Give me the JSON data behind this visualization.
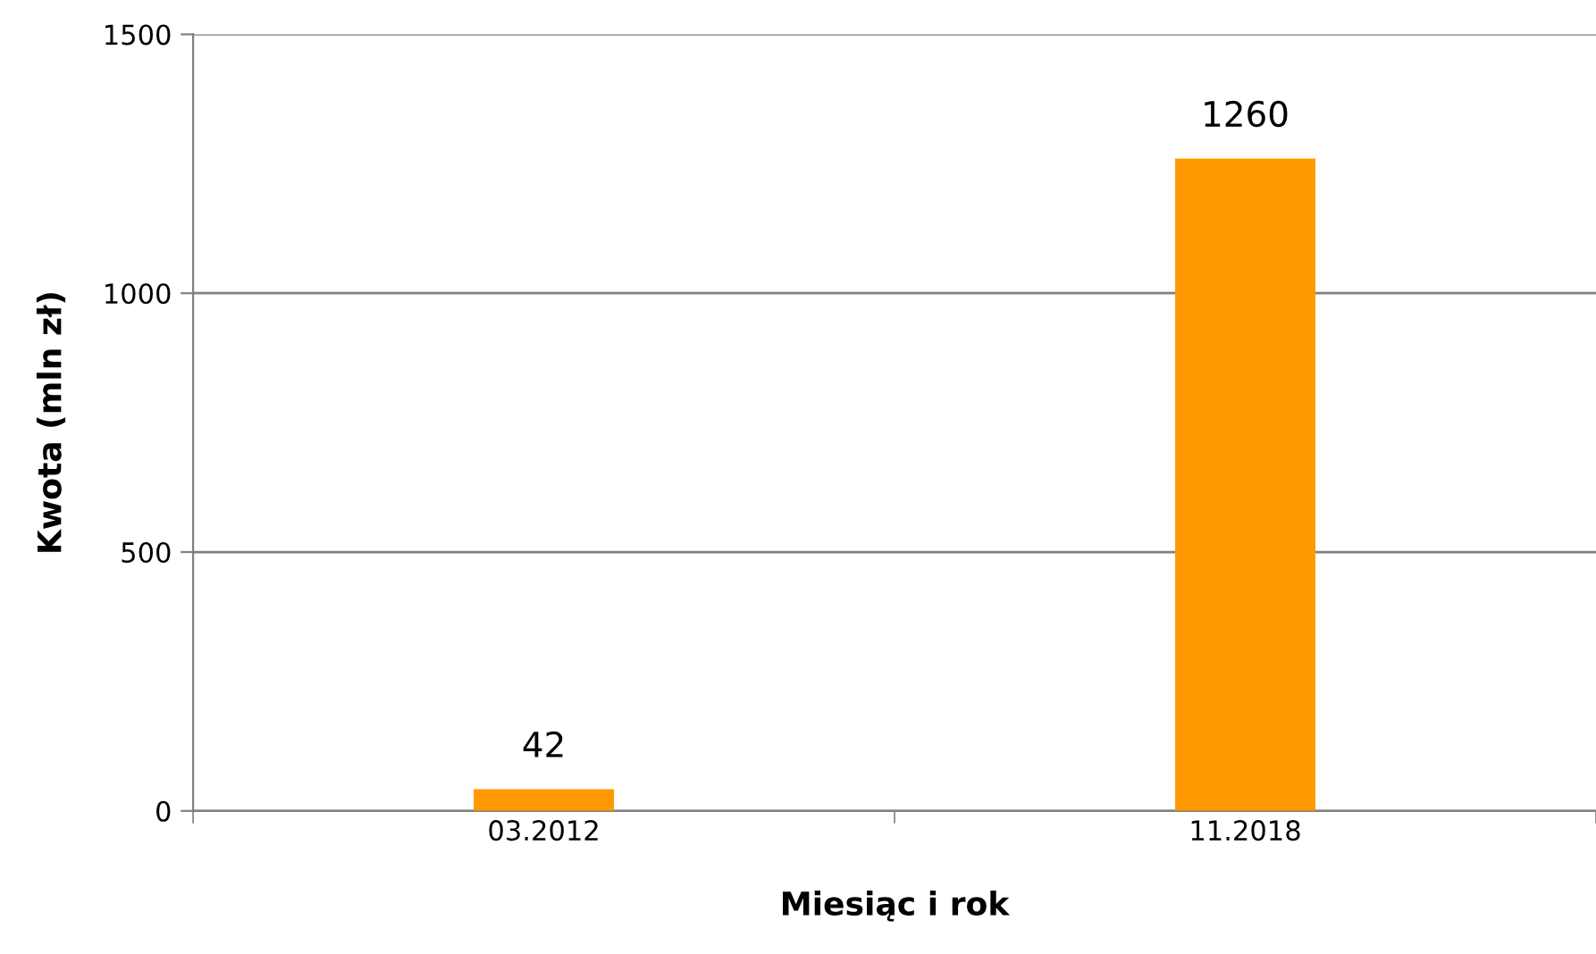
{
  "chart_data": {
    "type": "bar",
    "xlabel": "Miesiąc i rok",
    "ylabel": "Kwota (mln zł)",
    "categories": [
      "03.2012",
      "11.2018"
    ],
    "values": [
      42,
      1260
    ],
    "color": "#ff9900",
    "ylim": [
      0,
      1500
    ],
    "yticks": [
      0,
      500,
      1000,
      1500
    ],
    "grid": "y",
    "data_labels": true
  }
}
